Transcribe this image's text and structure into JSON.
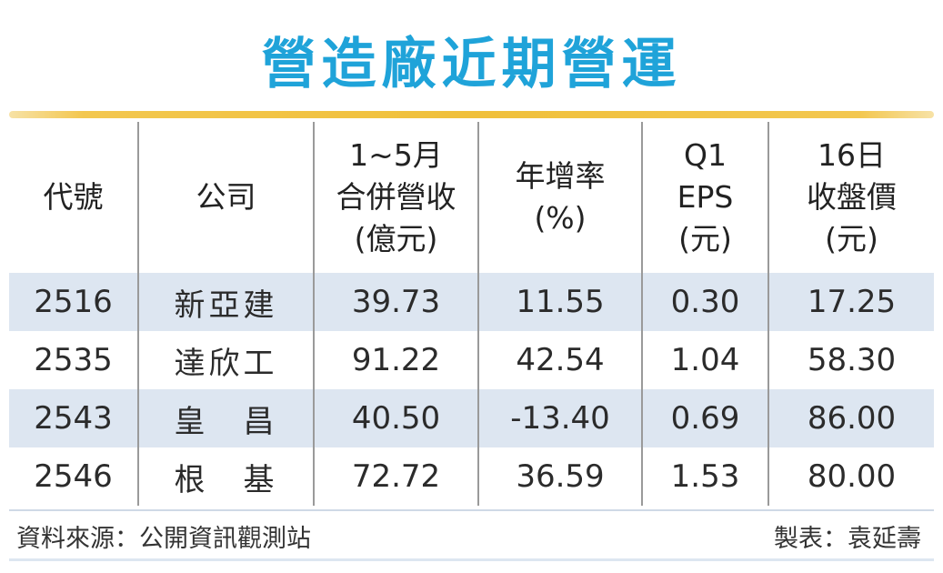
{
  "title": "營造廠近期營運",
  "table": {
    "headers": {
      "code": "代號",
      "company": "公司",
      "revenue": [
        "1~5月",
        "合併營收",
        "(億元)"
      ],
      "growth": [
        "年增率",
        "(%)"
      ],
      "eps": [
        "Q1",
        "EPS",
        "(元)"
      ],
      "price": [
        "16日",
        "收盤價",
        "(元)"
      ]
    },
    "rows": [
      {
        "code": "2516",
        "company": "新亞建",
        "revenue": "39.73",
        "growth": "11.55",
        "eps": "0.30",
        "price": "17.25"
      },
      {
        "code": "2535",
        "company": "達欣工",
        "revenue": "91.22",
        "growth": "42.54",
        "eps": "1.04",
        "price": "58.30"
      },
      {
        "code": "2543",
        "company": "皇　昌",
        "revenue": "40.50",
        "growth": "-13.40",
        "eps": "0.69",
        "price": "86.00"
      },
      {
        "code": "2546",
        "company": "根　基",
        "revenue": "72.72",
        "growth": "36.59",
        "eps": "1.53",
        "price": "80.00"
      }
    ]
  },
  "footer": {
    "source": "資料來源：公開資訊觀測站",
    "maker": "製表：袁延壽"
  },
  "colors": {
    "title": "#1fa3d9",
    "rule": "#f0c03a",
    "band": "#dde6f1"
  }
}
